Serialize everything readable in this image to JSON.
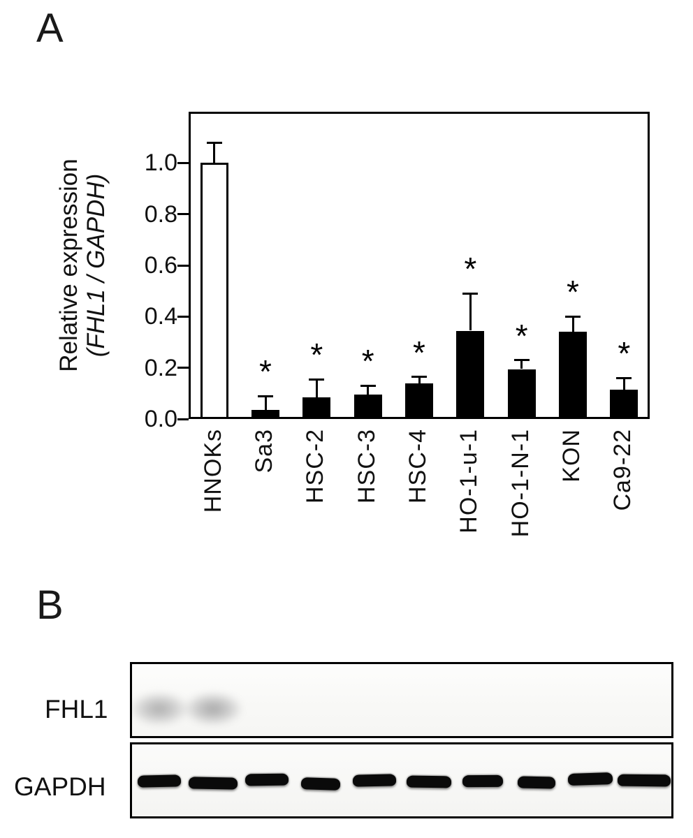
{
  "panelA": {
    "label": "A"
  },
  "panelB": {
    "label": "B",
    "rows": [
      {
        "label": "FHL1",
        "band_intensities": [
          0.55,
          0.6,
          0,
          0,
          0,
          0,
          0,
          0,
          0,
          0
        ]
      },
      {
        "label": "GAPDH",
        "band_intensities": [
          1,
          1,
          1,
          1,
          1,
          1,
          1,
          1,
          1,
          1
        ]
      }
    ]
  },
  "chart_data": {
    "type": "bar",
    "title": "",
    "categories": [
      "HNOKs",
      "Sa3",
      "HSC-2",
      "HSC-3",
      "HSC-4",
      "HO-1-u-1",
      "HO-1-N-1",
      "KON",
      "Ca9-22"
    ],
    "values": [
      1.0,
      0.035,
      0.085,
      0.095,
      0.14,
      0.345,
      0.195,
      0.34,
      0.115
    ],
    "errors_upper": [
      0.08,
      0.055,
      0.07,
      0.035,
      0.025,
      0.145,
      0.035,
      0.06,
      0.045
    ],
    "significant": [
      false,
      true,
      true,
      true,
      true,
      true,
      true,
      true,
      true
    ],
    "significance_marker": "*",
    "bar_fill": [
      "#ffffff",
      "#000000",
      "#000000",
      "#000000",
      "#000000",
      "#000000",
      "#000000",
      "#000000",
      "#000000"
    ],
    "ylabel_line1": "Relative expression",
    "ylabel_line2": "(FHL1 / GAPDH)",
    "yticks": [
      "0.0",
      "0.2",
      "0.4",
      "0.6",
      "0.8",
      "1.0"
    ],
    "ylim": [
      0,
      1.2
    ],
    "grid": false,
    "legend": "none"
  }
}
